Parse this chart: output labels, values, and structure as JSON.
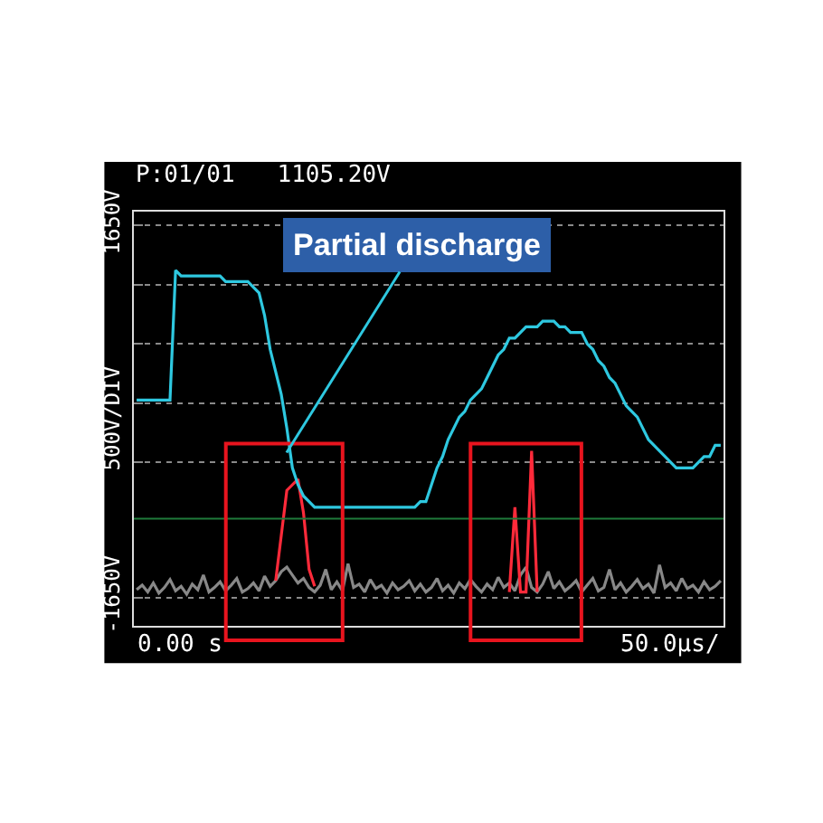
{
  "chart_data": {
    "type": "line",
    "title": "P:01/01   1105.20V",
    "ylabel": "500V/DIV",
    "annotations": [
      "Partial discharge",
      "0.00 s",
      "50.0µs/"
    ],
    "categories": [
      null,
      null,
      null,
      null,
      null,
      null,
      null,
      null,
      null,
      null,
      null,
      null,
      null,
      null,
      null,
      null,
      null,
      null,
      null,
      null,
      null,
      null,
      null,
      null,
      null,
      null,
      null,
      null,
      null,
      null,
      null,
      null,
      null,
      null,
      null,
      null,
      null,
      null,
      null,
      null,
      null,
      null,
      null,
      null,
      null,
      null,
      null,
      null,
      null,
      null,
      null,
      null,
      null,
      null,
      null,
      null,
      null,
      null,
      null,
      null,
      null,
      null,
      null,
      null,
      null,
      null,
      null,
      null,
      null,
      null,
      null,
      null,
      null,
      null,
      null,
      null,
      null,
      null,
      null,
      null,
      null,
      null,
      null,
      null,
      null,
      null,
      null,
      null,
      null,
      null,
      null,
      null,
      null,
      null,
      null,
      null,
      null,
      null,
      null,
      null,
      null,
      null,
      null,
      null,
      null,
      null
    ],
    "ylim": [
      -1900,
      1770
    ],
    "yticks": [
      {
        "value": 1650,
        "label": "1650V"
      },
      {
        "value": 1125,
        "label": null
      },
      {
        "value": 600,
        "label": null
      },
      {
        "value": 75,
        "label": null
      },
      {
        "value": -450,
        "label": null
      },
      {
        "value": -1650,
        "label": "-1650V"
      }
    ],
    "grid": "y",
    "ref_lines": [
      {
        "axis": "y",
        "value": -950,
        "color": "#1f7a3a"
      }
    ],
    "series": [
      {
        "color": "#888888",
        "values": [
          -1580,
          -1540,
          -1600,
          -1520,
          -1610,
          -1560,
          -1490,
          -1590,
          -1550,
          -1620,
          -1530,
          -1580,
          -1450,
          -1600,
          -1560,
          -1510,
          -1590,
          -1540,
          -1480,
          -1600,
          -1570,
          -1520,
          -1590,
          -1460,
          -1550,
          -1500,
          -1420,
          -1380,
          -1450,
          -1520,
          -1480,
          -1560,
          -1600,
          -1540,
          -1400,
          -1580,
          -1510,
          -1590,
          -1350,
          -1560,
          -1530,
          -1600,
          -1490,
          -1570,
          -1540,
          -1610,
          -1520,
          -1580,
          -1550,
          -1500,
          -1590,
          -1530,
          -1600,
          -1560,
          -1480,
          -1590,
          -1540,
          -1610,
          -1520,
          -1570,
          -1490,
          -1550,
          -1600,
          -1530,
          -1580,
          -1470,
          -1560,
          -1520,
          -1590,
          -1450,
          -1380,
          -1560,
          -1600,
          -1530,
          -1420,
          -1570,
          -1510,
          -1590,
          -1550,
          -1500,
          -1600,
          -1540,
          -1480,
          -1590,
          -1560,
          -1400,
          -1580,
          -1520,
          -1600,
          -1550,
          -1490,
          -1570,
          -1530,
          -1610,
          -1360,
          -1560,
          -1520,
          -1590,
          -1480,
          -1570,
          -1540,
          -1600,
          -1510,
          -1580,
          -1550,
          -1500
        ]
      },
      {
        "color": "#ff2a3a",
        "values": [
          null,
          null,
          null,
          null,
          null,
          null,
          null,
          null,
          null,
          null,
          null,
          null,
          null,
          null,
          null,
          null,
          null,
          null,
          null,
          null,
          null,
          null,
          null,
          null,
          null,
          -1500,
          -1100,
          -700,
          -650,
          -600,
          -900,
          -1400,
          -1550,
          null,
          null,
          null,
          null,
          null,
          null,
          null,
          null,
          null,
          null,
          null,
          null,
          null,
          null,
          null,
          null,
          null,
          null,
          null,
          null,
          null,
          null,
          null,
          null,
          null,
          null,
          null,
          null,
          null,
          null,
          null,
          null,
          null,
          null,
          -1600,
          -850,
          -1600,
          -1600,
          -350,
          -1600,
          null,
          null,
          null,
          null,
          null,
          null,
          null,
          null,
          null,
          null,
          null,
          null,
          null,
          null,
          null,
          null,
          null,
          null,
          null,
          null,
          null,
          null,
          null,
          null,
          null,
          null,
          null,
          null,
          null,
          null,
          null,
          null,
          null
        ]
      },
      {
        "color": "#2ec8e0",
        "values": [
          100,
          100,
          100,
          100,
          100,
          100,
          100,
          1250,
          1200,
          1200,
          1200,
          1200,
          1200,
          1200,
          1200,
          1200,
          1150,
          1150,
          1150,
          1150,
          1150,
          1100,
          1050,
          850,
          550,
          350,
          150,
          -150,
          -500,
          -650,
          -750,
          -800,
          -850,
          -850,
          -850,
          -850,
          -850,
          -850,
          -850,
          -850,
          -850,
          -850,
          -850,
          -850,
          -850,
          -850,
          -850,
          -850,
          -850,
          -850,
          -850,
          -800,
          -800,
          -650,
          -500,
          -400,
          -250,
          -150,
          -50,
          0,
          100,
          150,
          200,
          300,
          400,
          500,
          550,
          650,
          650,
          700,
          750,
          750,
          750,
          800,
          800,
          800,
          750,
          750,
          700,
          700,
          700,
          600,
          550,
          450,
          400,
          300,
          250,
          150,
          50,
          0,
          -50,
          -150,
          -250,
          -300,
          -350,
          -400,
          -450,
          -500,
          -500,
          -500,
          -500,
          -450,
          -400,
          -400,
          -300,
          -300
        ]
      }
    ]
  }
}
